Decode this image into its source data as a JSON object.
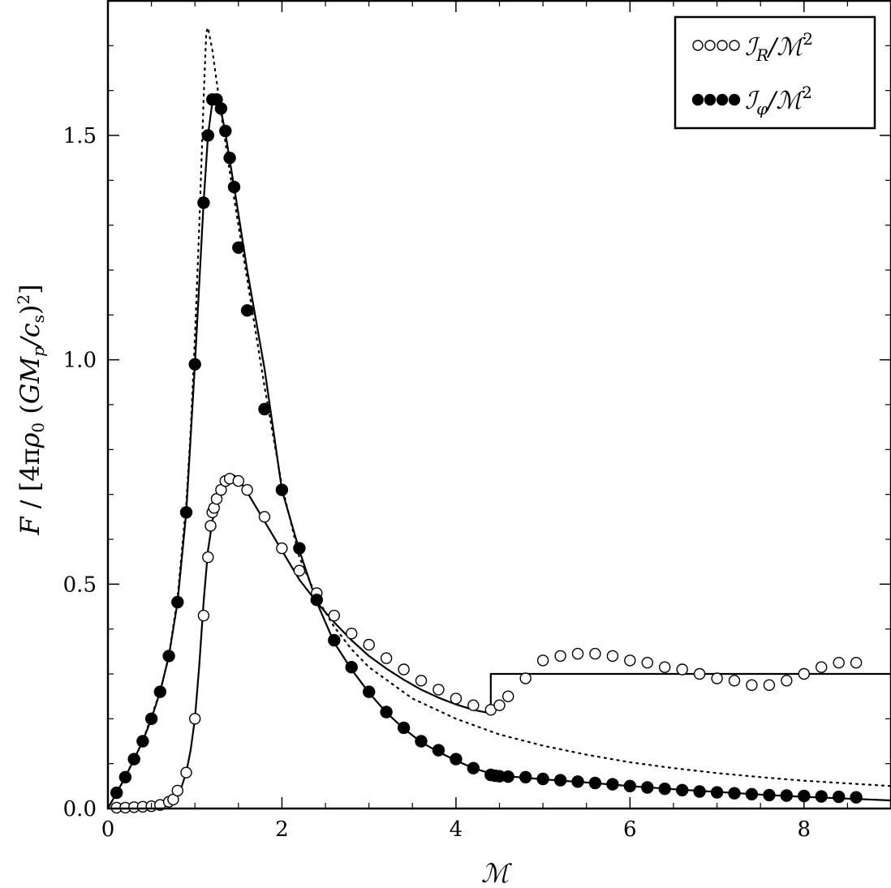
{
  "chart_data": {
    "type": "line",
    "xlabel": "ℳ",
    "ylabel": "F / [4πρ₀ (GMₚ/c_s)²]",
    "xlim": [
      0,
      9
    ],
    "ylim": [
      0,
      1.8
    ],
    "xticks": [
      0,
      2,
      4,
      6,
      8
    ],
    "xtick_labels": [
      "0",
      "2",
      "4",
      "6",
      "8"
    ],
    "yticks": [
      0.0,
      0.5,
      1.0,
      1.5
    ],
    "ytick_labels": [
      "0.0",
      "0.5",
      "1.0",
      "1.5"
    ],
    "grid": false,
    "legend_position": "top-right",
    "series": [
      {
        "name": "ℐ_R/ℳ²",
        "style": "open-circles",
        "x": [
          0.1,
          0.2,
          0.3,
          0.4,
          0.5,
          0.6,
          0.7,
          0.75,
          0.8,
          0.9,
          1.0,
          1.1,
          1.15,
          1.18,
          1.2,
          1.22,
          1.25,
          1.3,
          1.35,
          1.4,
          1.5,
          1.6,
          1.8,
          2.0,
          2.2,
          2.4,
          2.6,
          2.8,
          3.0,
          3.2,
          3.4,
          3.6,
          3.8,
          4.0,
          4.2,
          4.4,
          4.5,
          4.6,
          4.8,
          5.0,
          5.2,
          5.4,
          5.6,
          5.8,
          6.0,
          6.2,
          6.4,
          6.6,
          6.8,
          7.0,
          7.2,
          7.4,
          7.6,
          7.8,
          8.0,
          8.2,
          8.4,
          8.6
        ],
        "values": [
          0.002,
          0.002,
          0.003,
          0.004,
          0.005,
          0.008,
          0.015,
          0.02,
          0.04,
          0.08,
          0.2,
          0.43,
          0.56,
          0.63,
          0.66,
          0.67,
          0.69,
          0.71,
          0.73,
          0.735,
          0.73,
          0.71,
          0.65,
          0.58,
          0.53,
          0.48,
          0.43,
          0.39,
          0.365,
          0.335,
          0.31,
          0.285,
          0.265,
          0.245,
          0.23,
          0.22,
          0.23,
          0.25,
          0.29,
          0.33,
          0.34,
          0.345,
          0.345,
          0.34,
          0.33,
          0.325,
          0.315,
          0.31,
          0.3,
          0.29,
          0.285,
          0.275,
          0.275,
          0.285,
          0.3,
          0.315,
          0.325,
          0.325
        ]
      },
      {
        "name": "ℐ_φ/ℳ²",
        "style": "filled-circles",
        "x": [
          0.1,
          0.2,
          0.3,
          0.4,
          0.5,
          0.6,
          0.7,
          0.8,
          0.9,
          1.0,
          1.1,
          1.15,
          1.2,
          1.25,
          1.3,
          1.35,
          1.4,
          1.45,
          1.5,
          1.6,
          1.8,
          2.0,
          2.2,
          2.4,
          2.6,
          2.8,
          3.0,
          3.2,
          3.4,
          3.6,
          3.8,
          4.0,
          4.2,
          4.4,
          4.45,
          4.5,
          4.6,
          4.8,
          5.0,
          5.2,
          5.4,
          5.6,
          5.8,
          6.0,
          6.2,
          6.4,
          6.6,
          6.8,
          7.0,
          7.2,
          7.4,
          7.6,
          7.8,
          8.0,
          8.2,
          8.4,
          8.6
        ],
        "values": [
          0.035,
          0.07,
          0.11,
          0.15,
          0.2,
          0.26,
          0.34,
          0.46,
          0.66,
          0.99,
          1.35,
          1.5,
          1.58,
          1.58,
          1.56,
          1.51,
          1.45,
          1.385,
          1.25,
          1.11,
          0.89,
          0.71,
          0.58,
          0.465,
          0.375,
          0.315,
          0.26,
          0.215,
          0.18,
          0.15,
          0.13,
          0.11,
          0.09,
          0.075,
          0.073,
          0.072,
          0.071,
          0.07,
          0.066,
          0.063,
          0.06,
          0.057,
          0.054,
          0.05,
          0.047,
          0.044,
          0.041,
          0.038,
          0.036,
          0.034,
          0.032,
          0.03,
          0.029,
          0.028,
          0.027,
          0.026,
          0.025
        ]
      },
      {
        "name": "",
        "style": "solid",
        "x": [
          0.0,
          0.1,
          0.2,
          0.3,
          0.4,
          0.5,
          0.6,
          0.7,
          0.8,
          0.9,
          1.0,
          1.1,
          1.15,
          1.2,
          1.25,
          1.3,
          1.35,
          1.4,
          1.45,
          1.5,
          1.6,
          1.7,
          1.8,
          2.0,
          2.2,
          2.4,
          2.6,
          2.8,
          3.0,
          3.2,
          3.4,
          3.6,
          3.8,
          4.0,
          4.2,
          4.4,
          4.6,
          5.0,
          5.5,
          6.0,
          6.5,
          7.0,
          7.5,
          8.0,
          8.5,
          9.0
        ],
        "values": [
          0.0,
          0.035,
          0.07,
          0.11,
          0.15,
          0.2,
          0.26,
          0.34,
          0.46,
          0.66,
          0.99,
          1.35,
          1.5,
          1.575,
          1.58,
          1.555,
          1.505,
          1.445,
          1.385,
          1.325,
          1.2,
          1.09,
          0.98,
          0.71,
          0.575,
          0.46,
          0.37,
          0.31,
          0.258,
          0.214,
          0.178,
          0.148,
          0.126,
          0.107,
          0.09,
          0.078,
          0.072,
          0.065,
          0.058,
          0.05,
          0.043,
          0.037,
          0.031,
          0.026,
          0.022,
          0.018
        ]
      },
      {
        "name": "",
        "style": "solid",
        "x": [
          0.0,
          0.3,
          0.5,
          0.6,
          0.7,
          0.8,
          0.85,
          0.9,
          0.95,
          1.0,
          1.05,
          1.1,
          1.15,
          1.2,
          1.25,
          1.3,
          1.35,
          1.4,
          1.45,
          1.5,
          1.6,
          1.8,
          2.0,
          2.2,
          2.4,
          2.6,
          2.8,
          3.0,
          3.2,
          3.4,
          3.6,
          3.8,
          4.0,
          4.2,
          4.4,
          4.4,
          9.0
        ],
        "values": [
          0.0,
          0.0,
          0.001,
          0.004,
          0.012,
          0.03,
          0.05,
          0.08,
          0.13,
          0.2,
          0.32,
          0.46,
          0.575,
          0.64,
          0.685,
          0.715,
          0.733,
          0.743,
          0.742,
          0.735,
          0.705,
          0.64,
          0.575,
          0.51,
          0.46,
          0.415,
          0.375,
          0.34,
          0.312,
          0.287,
          0.265,
          0.247,
          0.232,
          0.22,
          0.212,
          0.3,
          0.3
        ]
      },
      {
        "name": "",
        "style": "dotted",
        "x": [
          0.0,
          0.2,
          0.4,
          0.6,
          0.7,
          0.8,
          0.9,
          0.95,
          1.0,
          1.05,
          1.1,
          1.13,
          1.15,
          1.2,
          1.25,
          1.3,
          1.4,
          1.5,
          1.6,
          1.8,
          2.0,
          2.2,
          2.4,
          2.6,
          2.8,
          3.0,
          3.5,
          4.0,
          4.5,
          5.0,
          5.5,
          6.0,
          6.5,
          7.0,
          7.5,
          8.0,
          8.5,
          9.0
        ],
        "values": [
          0.0,
          0.07,
          0.15,
          0.26,
          0.34,
          0.47,
          0.68,
          0.84,
          1.05,
          1.3,
          1.58,
          1.73,
          1.74,
          1.69,
          1.62,
          1.55,
          1.42,
          1.3,
          1.18,
          0.94,
          0.72,
          0.56,
          0.47,
          0.405,
          0.355,
          0.315,
          0.245,
          0.2,
          0.165,
          0.14,
          0.12,
          0.103,
          0.09,
          0.079,
          0.07,
          0.062,
          0.056,
          0.05
        ]
      }
    ]
  },
  "legend": {
    "items": [
      {
        "label": "ℐ",
        "sub": "R",
        "suffix": "/ℳ",
        "sup": "2"
      },
      {
        "label": "ℐ",
        "sub": "φ",
        "suffix": "/ℳ",
        "sup": "2"
      }
    ]
  },
  "axes": {
    "xlabel": "ℳ",
    "ylabel_parts": {
      "a": "F",
      "b": " / [4π",
      "c": "ρ",
      "d": "0",
      "e": " (",
      "f": "GM",
      "g": "p",
      "h": "/",
      "i": "c",
      "j": "s",
      "k": ")",
      "l": "2",
      "m": "]"
    }
  }
}
